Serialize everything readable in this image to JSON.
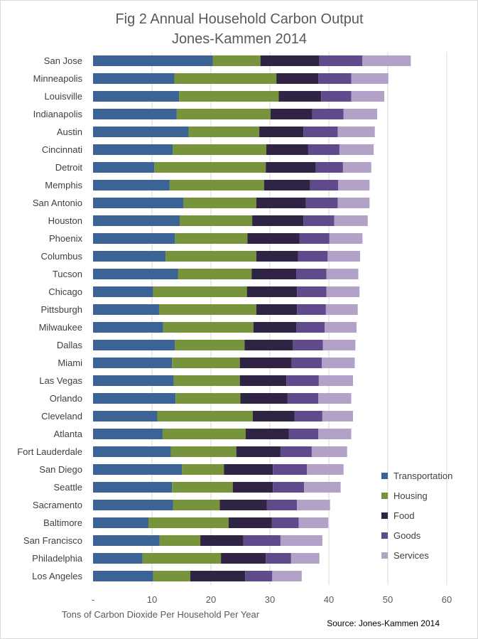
{
  "chart_data": {
    "type": "bar",
    "orientation": "horizontal",
    "stacked": true,
    "title_line1": "Fig 2 Annual Household Carbon Output",
    "title_line2": "Jones-Kammen 2014",
    "xlabel": "Tons of Carbon Dioxide Per Household Per Year",
    "ylabel": "",
    "source": "Source: Jones-Kammen 2014",
    "xlim": [
      0,
      60
    ],
    "xticks": [
      0,
      10,
      20,
      30,
      40,
      50,
      60
    ],
    "xtick_labels": [
      "-",
      "10",
      "20",
      "30",
      "40",
      "50",
      "60"
    ],
    "grid": true,
    "legend_position": "right",
    "categories": [
      "San Jose",
      "Minneapolis",
      "Louisville",
      "Indianapolis",
      "Austin",
      "Cincinnati",
      "Detroit",
      "Memphis",
      "San Antonio",
      "Houston",
      "Phoenix",
      "Columbus",
      "Tucson",
      "Chicago",
      "Pittsburgh",
      "Milwaukee",
      "Dallas",
      "Miami",
      "Las Vegas",
      "Orlando",
      "Cleveland",
      "Atlanta",
      "Fort Lauderdale",
      "San Diego",
      "Seattle",
      "Sacramento",
      "Baltimore",
      "San Francisco",
      "Philadelphia",
      "Los Angeles"
    ],
    "series": [
      {
        "name": "Transportation",
        "color": "#3b6395",
        "values": [
          20.3,
          13.8,
          14.6,
          14.2,
          16.2,
          13.5,
          10.4,
          13.0,
          15.3,
          14.7,
          13.9,
          12.3,
          14.4,
          10.2,
          11.2,
          11.9,
          13.9,
          13.4,
          13.7,
          14.0,
          10.9,
          11.8,
          13.2,
          15.1,
          13.4,
          13.6,
          9.4,
          11.3,
          8.4,
          10.2
        ]
      },
      {
        "name": "Housing",
        "color": "#77933c",
        "values": [
          8.1,
          17.3,
          16.9,
          15.9,
          12.0,
          15.9,
          18.9,
          16.0,
          12.4,
          12.3,
          12.3,
          15.4,
          12.5,
          15.9,
          16.5,
          15.3,
          11.8,
          11.5,
          11.2,
          11.0,
          16.2,
          14.1,
          11.1,
          7.1,
          10.3,
          7.9,
          13.6,
          6.9,
          13.3,
          6.3
        ]
      },
      {
        "name": "Food",
        "color": "#2f2443",
        "values": [
          10.0,
          7.1,
          7.2,
          7.1,
          7.5,
          7.1,
          8.5,
          7.8,
          8.4,
          8.7,
          8.8,
          7.1,
          7.6,
          8.5,
          6.9,
          7.3,
          8.2,
          8.8,
          7.9,
          8.0,
          7.1,
          7.3,
          7.5,
          8.3,
          6.8,
          8.0,
          7.3,
          7.3,
          7.6,
          9.3
        ]
      },
      {
        "name": "Goods",
        "color": "#5f4b8b",
        "values": [
          7.3,
          5.6,
          5.1,
          5.3,
          5.8,
          5.3,
          4.6,
          4.8,
          5.4,
          5.2,
          5.1,
          5.0,
          5.1,
          5.0,
          4.9,
          4.8,
          5.1,
          5.1,
          5.5,
          5.2,
          4.7,
          5.0,
          5.3,
          5.8,
          5.3,
          5.1,
          4.6,
          6.3,
          4.3,
          4.6
        ]
      },
      {
        "name": "Services",
        "color": "#b3a2c7",
        "values": [
          8.2,
          6.3,
          5.6,
          5.7,
          6.3,
          5.8,
          4.8,
          5.3,
          5.4,
          5.7,
          5.6,
          5.5,
          5.4,
          5.6,
          5.4,
          5.4,
          5.5,
          5.6,
          5.8,
          5.6,
          5.2,
          5.6,
          6.0,
          6.2,
          6.2,
          5.6,
          5.0,
          7.1,
          4.8,
          5.0
        ]
      }
    ]
  }
}
